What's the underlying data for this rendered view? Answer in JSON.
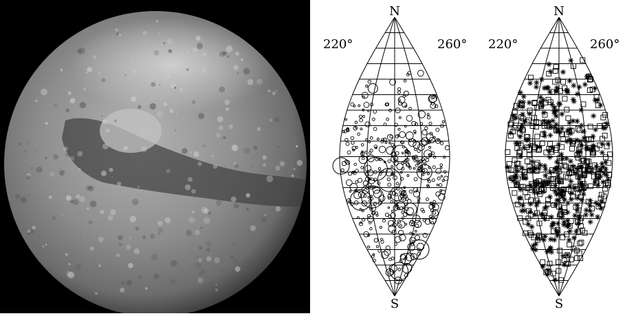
{
  "colors": {
    "background": "#ffffff",
    "photo_background": "#000000",
    "ink": "#000000",
    "planet_mid": "#8a8a8a",
    "planet_light": "#c8c8c8",
    "planet_dark": "#3c3c3c"
  },
  "photo": {
    "subject": "planet-disk-image"
  },
  "maps": [
    {
      "id": "map-crater-sizes",
      "north_label": "N",
      "south_label": "S",
      "lon_left_label": "220°",
      "lon_right_label": "260°",
      "marker": "open-circle",
      "n_small_markers": 420,
      "large_circles": [
        {
          "lat": 44,
          "lon": -0.55
        },
        {
          "lat": -6,
          "lon": -0.98
        },
        {
          "lat": -8,
          "lon": -0.35
        },
        {
          "lat": -10,
          "lon": 0.55
        },
        {
          "lat": -26,
          "lon": -0.45
        },
        {
          "lat": -24,
          "lon": 0.05
        },
        {
          "lat": -28,
          "lon": -0.7
        },
        {
          "lat": -34,
          "lon": 0.35
        },
        {
          "lat": -60,
          "lon": 0.9
        },
        {
          "lat": -66,
          "lon": 0.5
        },
        {
          "lat": -74,
          "lon": 0.3
        },
        {
          "lat": -72,
          "lon": 0.72
        },
        {
          "lat": 2,
          "lon": 0.1
        },
        {
          "lat": -15,
          "lon": -0.1
        }
      ]
    },
    {
      "id": "map-symbol-classes",
      "north_label": "N",
      "south_label": "S",
      "lon_left_label": "220°",
      "lon_right_label": "260°",
      "markers": [
        "open-square",
        "asterisk"
      ],
      "n_squares": 330,
      "n_asterisks": 300
    }
  ]
}
